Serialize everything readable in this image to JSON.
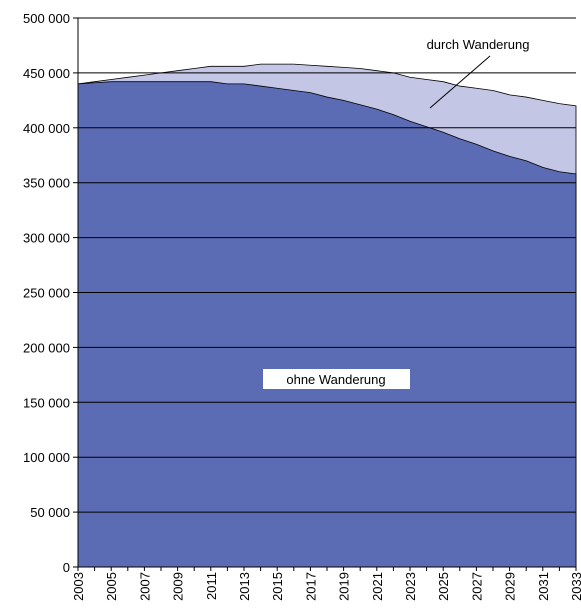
{
  "chart_data": {
    "type": "area",
    "categories": [
      "2003",
      null,
      "2005",
      null,
      "2007",
      null,
      "2009",
      null,
      "2011",
      null,
      "2013",
      null,
      "2015",
      null,
      "2017",
      null,
      "2019",
      null,
      "2021",
      null,
      "2023",
      null,
      "2025",
      null,
      "2027",
      null,
      "2029",
      null,
      "2031",
      null,
      "2033"
    ],
    "series": [
      {
        "name": "ohne Wanderung",
        "color": "#5b6bb4",
        "values": [
          440000,
          441000,
          442000,
          442000,
          442000,
          442000,
          442000,
          442000,
          442000,
          440000,
          440000,
          438000,
          436000,
          434000,
          432000,
          428000,
          425000,
          421000,
          417000,
          412000,
          406000,
          401000,
          396000,
          390000,
          385000,
          379000,
          374000,
          370000,
          364000,
          360000,
          358000
        ]
      },
      {
        "name": "durch Wanderung",
        "color": "#c3c6e4",
        "values": [
          0,
          1000,
          2000,
          4000,
          6000,
          8000,
          10000,
          12000,
          14000,
          16000,
          16000,
          20000,
          22000,
          24000,
          25000,
          28000,
          30000,
          33000,
          35000,
          38000,
          40000,
          43000,
          46000,
          48000,
          51000,
          55000,
          56000,
          58000,
          61000,
          62000,
          62000
        ]
      }
    ],
    "stacked": true,
    "ylim": [
      0,
      500000
    ],
    "yticks": [
      {
        "value": 0,
        "label": "0"
      },
      {
        "value": 50000,
        "label": "50 000"
      },
      {
        "value": 100000,
        "label": "100 000"
      },
      {
        "value": 150000,
        "label": "150 000"
      },
      {
        "value": 200000,
        "label": "200 000"
      },
      {
        "value": 250000,
        "label": "250 000"
      },
      {
        "value": 300000,
        "label": "300 000"
      },
      {
        "value": 350000,
        "label": "350 000"
      },
      {
        "value": 400000,
        "label": "400 000"
      },
      {
        "value": 450000,
        "label": "450 000"
      },
      {
        "value": 500000,
        "label": "500 000"
      }
    ],
    "grid": true
  }
}
